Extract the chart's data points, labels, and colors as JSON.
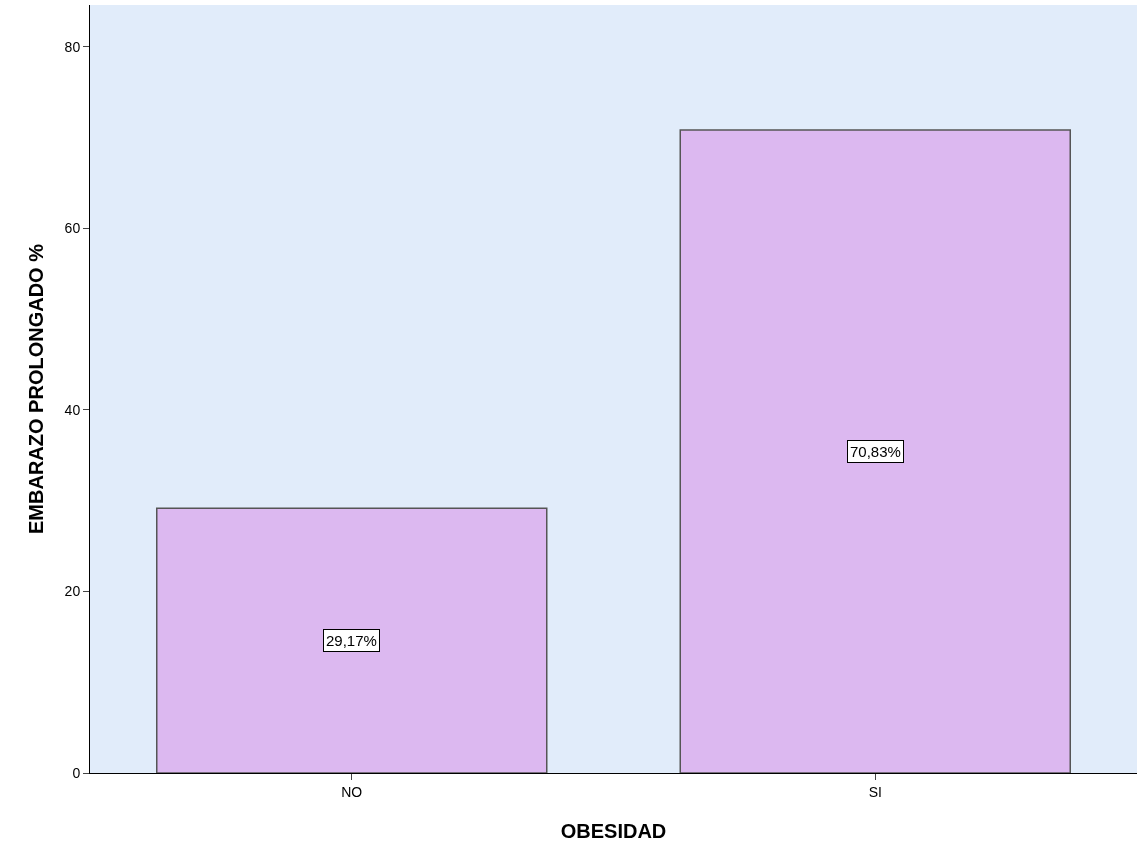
{
  "chart_data": {
    "type": "bar",
    "xlabel": "OBESIDAD",
    "ylabel": "EMBARAZO PROLONGADO %",
    "categories": [
      "NO",
      "SI"
    ],
    "values": [
      29.17,
      70.83
    ],
    "value_labels": [
      "29,17%",
      "70,83%"
    ],
    "color": "#dcb8f0",
    "ylim": [
      0,
      84.6
    ],
    "yticks": [
      0,
      20,
      40,
      60,
      80
    ],
    "grid": false,
    "legend": false
  }
}
